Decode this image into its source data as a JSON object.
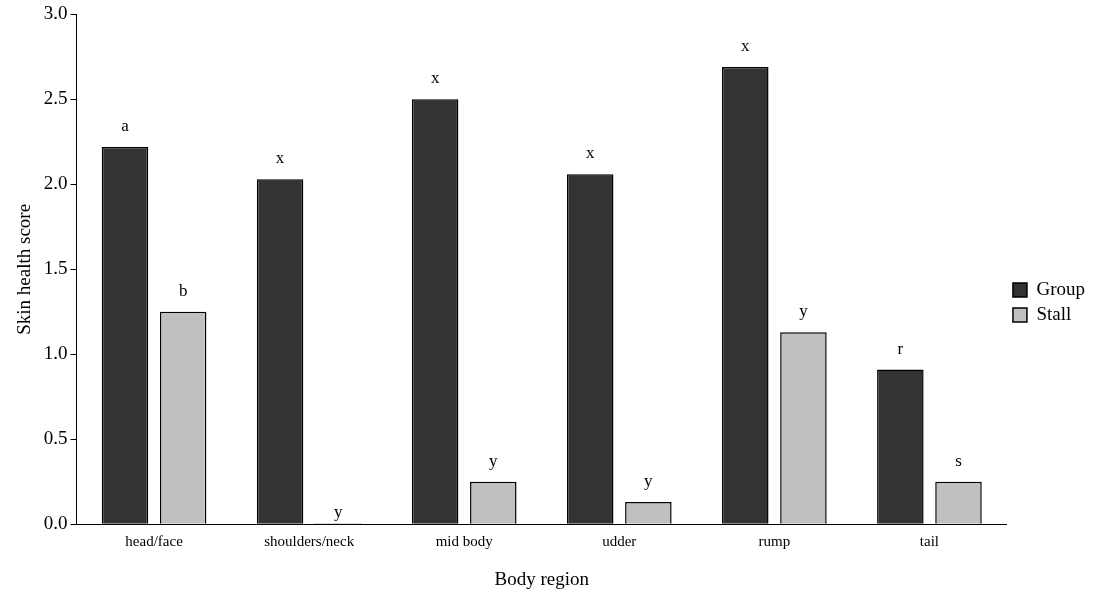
{
  "chart_data": {
    "type": "bar",
    "xlabel": "Body region",
    "ylabel": "Skin health score",
    "categories": [
      "head/face",
      "shoulders/neck",
      "mid body",
      "udder",
      "rump",
      "tail"
    ],
    "series": [
      {
        "name": "Group",
        "color": "#333333",
        "values": [
          2.22,
          2.03,
          2.5,
          2.06,
          2.69,
          0.91
        ],
        "value_labels": [
          "a",
          "x",
          "x",
          "x",
          "x",
          "r"
        ]
      },
      {
        "name": "Stall",
        "color": "#c0c0c0",
        "values": [
          1.25,
          0,
          0.25,
          0.13,
          1.13,
          0.25
        ],
        "value_labels": [
          "b",
          "y",
          "y",
          "y",
          "y",
          "s"
        ]
      }
    ],
    "ylim": [
      0,
      3
    ],
    "yticks": [
      {
        "value": 0,
        "label": "0.0"
      },
      {
        "value": 0.5,
        "label": "0.5"
      },
      {
        "value": 1,
        "label": "1.0"
      },
      {
        "value": 1.5,
        "label": "1.5"
      },
      {
        "value": 2,
        "label": "2.0"
      },
      {
        "value": 2.5,
        "label": "2.5"
      },
      {
        "value": 3,
        "label": "3.0"
      }
    ],
    "grid": false,
    "legend": "right"
  }
}
